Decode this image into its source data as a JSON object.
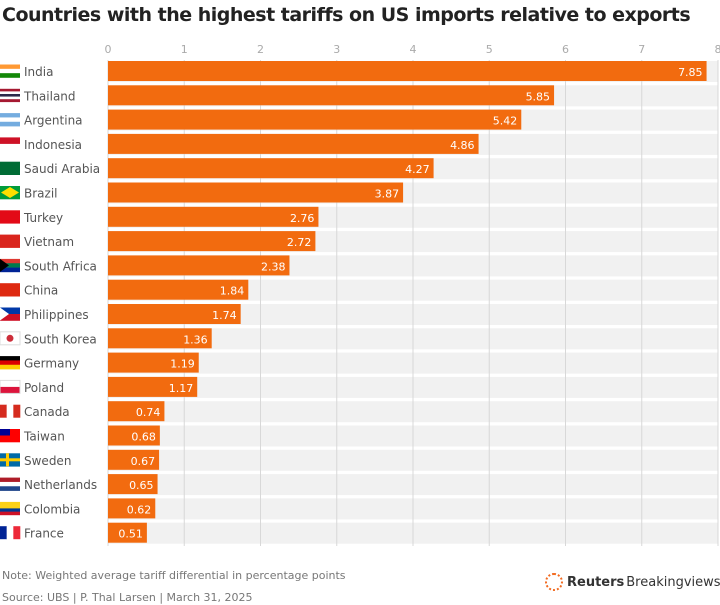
{
  "chart_data": {
    "type": "bar",
    "orientation": "horizontal",
    "title": "Countries with the highest tariffs on US imports relative to exports",
    "categories": [
      "India",
      "Thailand",
      "Argentina",
      "Indonesia",
      "Saudi Arabia",
      "Brazil",
      "Turkey",
      "Vietnam",
      "South Africa",
      "China",
      "Philippines",
      "South Korea",
      "Germany",
      "Poland",
      "Canada",
      "Taiwan",
      "Sweden",
      "Netherlands",
      "Colombia",
      "France"
    ],
    "values": [
      7.85,
      5.85,
      5.42,
      4.86,
      4.27,
      3.87,
      2.76,
      2.72,
      2.38,
      1.84,
      1.74,
      1.36,
      1.19,
      1.17,
      0.74,
      0.68,
      0.67,
      0.65,
      0.62,
      0.51
    ],
    "xlim": [
      0,
      8
    ],
    "xticks": [
      "0",
      "1",
      "2",
      "3",
      "4",
      "5",
      "6",
      "7",
      "8"
    ],
    "grid": true,
    "bar_color": "#f26b0f",
    "flag_icons": [
      "india-flag",
      "thailand-flag",
      "argentina-flag",
      "indonesia-flag",
      "saudi-arabia-flag",
      "brazil-flag",
      "turkey-flag",
      "vietnam-flag",
      "south-africa-flag",
      "china-flag",
      "philippines-flag",
      "south-korea-flag",
      "germany-flag",
      "poland-flag",
      "canada-flag",
      "taiwan-flag",
      "sweden-flag",
      "netherlands-flag",
      "colombia-flag",
      "france-flag"
    ]
  },
  "note": "Note: Weighted average tariff differential in percentage points",
  "source": "Source: UBS | P. Thal Larsen | March 31, 2025",
  "logo": {
    "bold": "Reuters",
    "rest": "Breakingviews"
  }
}
